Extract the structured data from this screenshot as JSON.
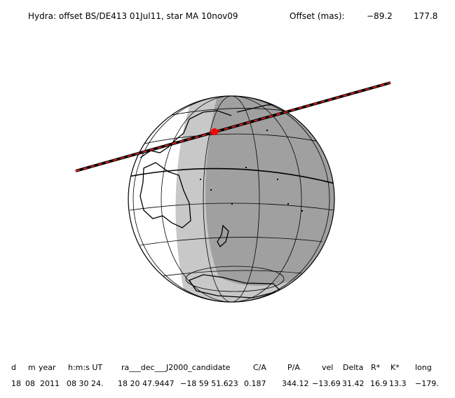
{
  "header": {
    "title": "Hydra: offset BS/DE413 01Jul11, star MA 10nov09",
    "offset_label": "Offset (mas):",
    "offset_values": [
      "−89.2",
      "177.8"
    ]
  },
  "table": {
    "columns": [
      "d",
      "m",
      "year",
      "h:m:s UT",
      "ra___dec___J2000_candidate",
      "C/A",
      "P/A",
      "vel",
      "Delta",
      "R*",
      "K*",
      "long"
    ],
    "rows": [
      [
        "18",
        "08",
        "2011",
        "08 30 24.",
        "18 20 47.9447",
        "−18 59 51.623",
        "0.187",
        "344.12",
        "−13.69",
        "31.42",
        "16.9",
        "13.3",
        "−179."
      ]
    ]
  }
}
